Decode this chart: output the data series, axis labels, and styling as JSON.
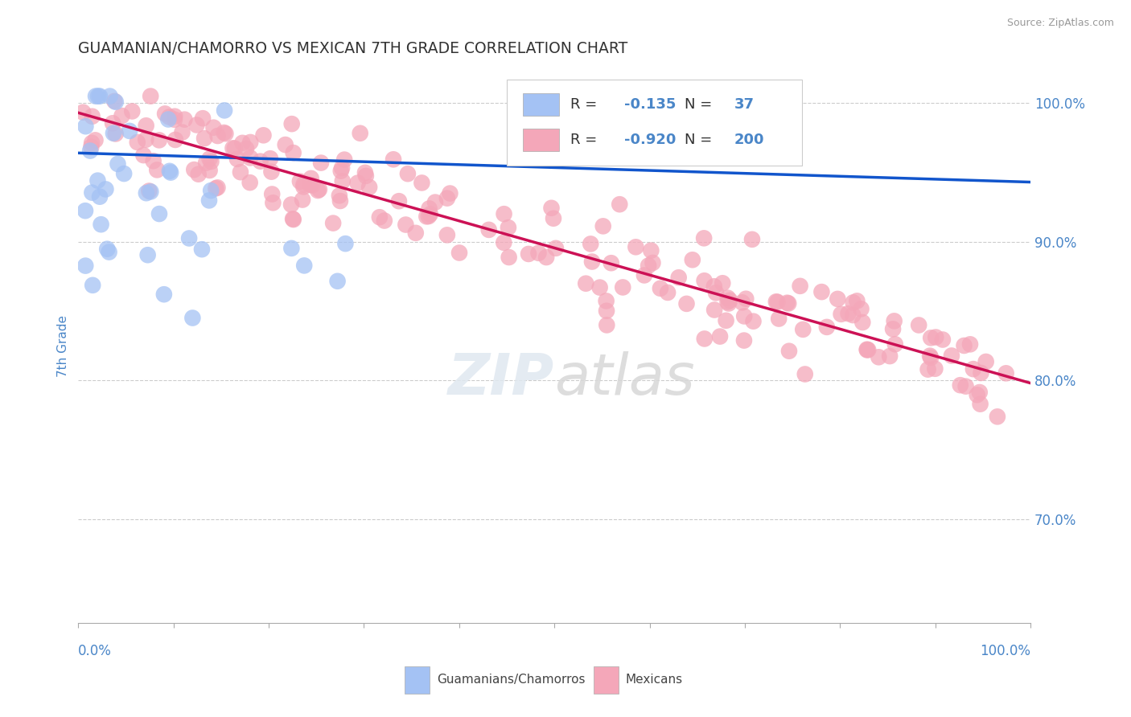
{
  "title": "GUAMANIAN/CHAMORRO VS MEXICAN 7TH GRADE CORRELATION CHART",
  "source": "Source: ZipAtlas.com",
  "ylabel": "7th Grade",
  "legend_label1": "Guamanians/Chamorros",
  "legend_label2": "Mexicans",
  "R1": "-0.135",
  "N1": "37",
  "R2": "-0.920",
  "N2": "200",
  "color_blue": "#a4c2f4",
  "color_pink": "#f4a7b9",
  "color_blue_line": "#1155cc",
  "color_pink_line": "#cc1155",
  "color_title": "#333333",
  "color_source": "#999999",
  "color_axis_label": "#4a86c8",
  "color_grid": "#cccccc",
  "xlim": [
    0.0,
    1.0
  ],
  "ylim": [
    0.625,
    1.025
  ],
  "yaxis_ticks": [
    0.7,
    0.8,
    0.9,
    1.0
  ],
  "yaxis_labels": [
    "70.0%",
    "80.0%",
    "90.0%",
    "100.0%"
  ],
  "blue_line_start_y": 0.964,
  "blue_line_end_y": 0.943,
  "pink_line_start_y": 0.993,
  "pink_line_end_y": 0.798,
  "background_color": "#ffffff"
}
